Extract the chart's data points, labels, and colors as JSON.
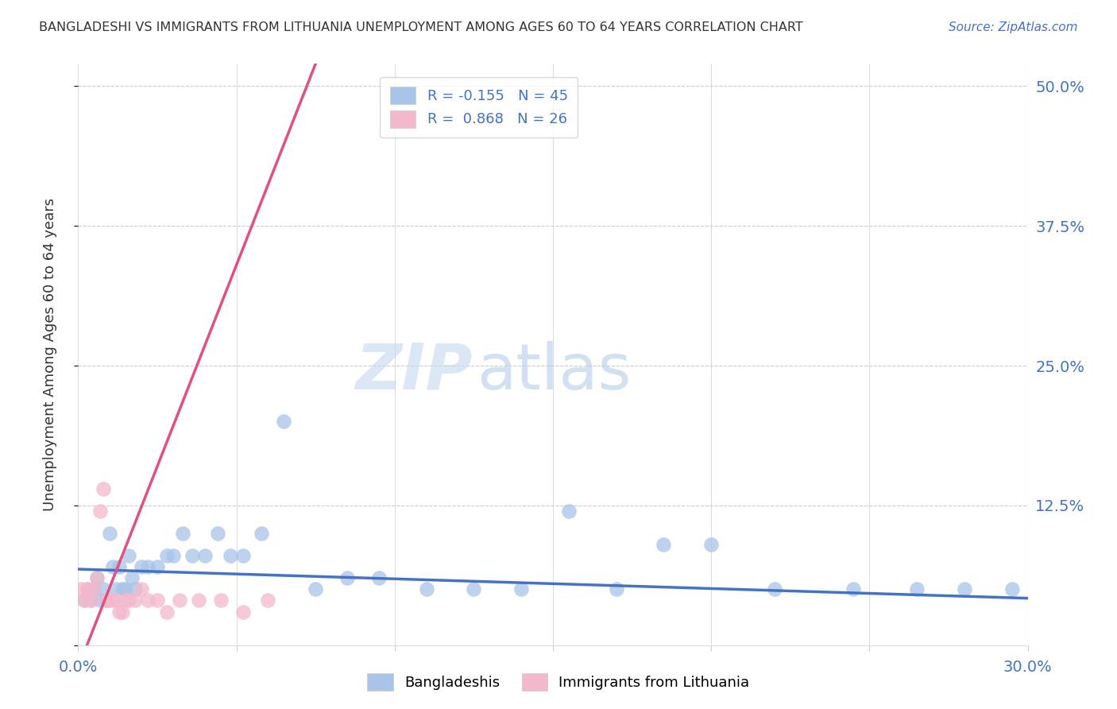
{
  "title": "BANGLADESHI VS IMMIGRANTS FROM LITHUANIA UNEMPLOYMENT AMONG AGES 60 TO 64 YEARS CORRELATION CHART",
  "source": "Source: ZipAtlas.com",
  "ylabel": "Unemployment Among Ages 60 to 64 years",
  "xlim": [
    0.0,
    0.3
  ],
  "ylim": [
    0.0,
    0.52
  ],
  "xticks": [
    0.0,
    0.05,
    0.1,
    0.15,
    0.2,
    0.25,
    0.3
  ],
  "ytick_positions": [
    0.0,
    0.125,
    0.25,
    0.375,
    0.5
  ],
  "ytick_labels": [
    "",
    "12.5%",
    "25.0%",
    "37.5%",
    "50.0%"
  ],
  "bangladeshi_x": [
    0.002,
    0.003,
    0.004,
    0.005,
    0.006,
    0.007,
    0.008,
    0.009,
    0.01,
    0.011,
    0.012,
    0.013,
    0.014,
    0.015,
    0.016,
    0.017,
    0.018,
    0.02,
    0.022,
    0.025,
    0.028,
    0.03,
    0.033,
    0.036,
    0.04,
    0.044,
    0.048,
    0.052,
    0.058,
    0.065,
    0.075,
    0.085,
    0.095,
    0.11,
    0.125,
    0.14,
    0.155,
    0.17,
    0.185,
    0.2,
    0.22,
    0.245,
    0.265,
    0.28,
    0.295
  ],
  "bangladeshi_y": [
    0.04,
    0.05,
    0.04,
    0.05,
    0.06,
    0.04,
    0.05,
    0.04,
    0.1,
    0.07,
    0.05,
    0.07,
    0.05,
    0.05,
    0.08,
    0.06,
    0.05,
    0.07,
    0.07,
    0.07,
    0.08,
    0.08,
    0.1,
    0.08,
    0.08,
    0.1,
    0.08,
    0.08,
    0.1,
    0.2,
    0.05,
    0.06,
    0.06,
    0.05,
    0.05,
    0.05,
    0.12,
    0.05,
    0.09,
    0.09,
    0.05,
    0.05,
    0.05,
    0.05,
    0.05
  ],
  "lithuania_x": [
    0.001,
    0.002,
    0.003,
    0.004,
    0.005,
    0.006,
    0.007,
    0.008,
    0.009,
    0.01,
    0.011,
    0.012,
    0.013,
    0.014,
    0.015,
    0.016,
    0.018,
    0.02,
    0.022,
    0.025,
    0.028,
    0.032,
    0.038,
    0.045,
    0.052,
    0.06
  ],
  "lithuania_y": [
    0.05,
    0.04,
    0.05,
    0.04,
    0.05,
    0.06,
    0.12,
    0.14,
    0.04,
    0.04,
    0.04,
    0.04,
    0.03,
    0.03,
    0.04,
    0.04,
    0.04,
    0.05,
    0.04,
    0.04,
    0.03,
    0.04,
    0.04,
    0.04,
    0.03,
    0.04
  ],
  "blue_R": -0.155,
  "blue_N": 45,
  "pink_R": 0.868,
  "pink_N": 26,
  "blue_line_color": "#4472C4",
  "pink_line_color": "#E05080",
  "blue_scatter_color": "#A8C4E8",
  "pink_scatter_color": "#F4B8CC",
  "watermark_zip": "ZIP",
  "watermark_atlas": "atlas",
  "background_color": "#ffffff",
  "grid_color": "#cccccc"
}
